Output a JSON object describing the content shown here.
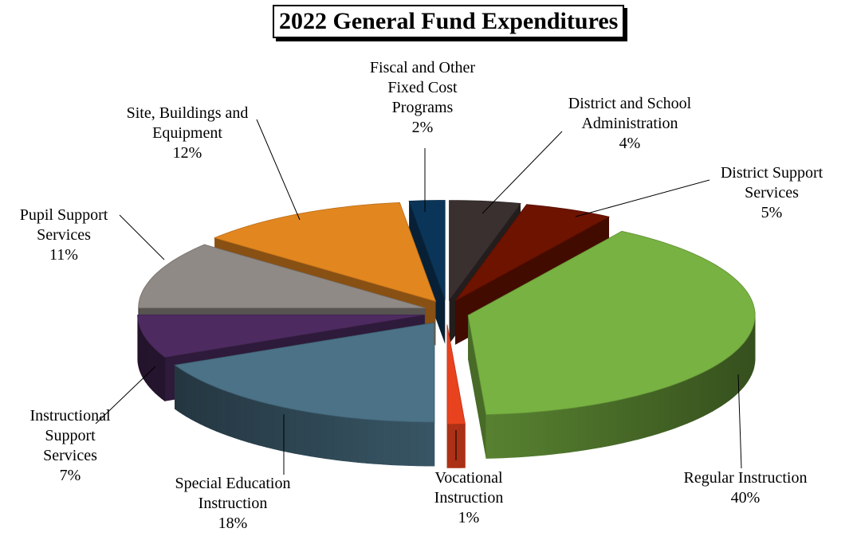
{
  "chart_data": {
    "type": "pie3d",
    "title": "2022 General Fund Expenditures",
    "categories": [
      "District and School Administration",
      "District Support Services",
      "Regular Instruction",
      "Vocational Instruction",
      "Special Education Instruction",
      "Instructional Support Services",
      "Pupil Support Services",
      "Site, Buildings and Equipment",
      "Fiscal and Other Fixed Cost Programs"
    ],
    "values": [
      4,
      5,
      40,
      1,
      18,
      7,
      11,
      12,
      2
    ],
    "value_labels": [
      "4%",
      "5%",
      "40%",
      "1%",
      "18%",
      "7%",
      "11%",
      "12%",
      "2%"
    ],
    "colors": [
      "#3b3030",
      "#6e1300",
      "#78b242",
      "#e8421e",
      "#4b7287",
      "#4d2b60",
      "#908a86",
      "#e2861f",
      "#0b3558"
    ]
  }
}
